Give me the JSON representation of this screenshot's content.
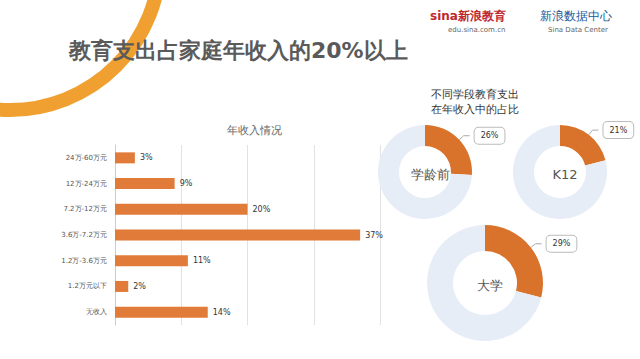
{
  "title": "教育支出占家庭年收入的20%以上",
  "logos": [
    {
      "name": "sina新浪教育",
      "sub": "edu.sina.com.cn"
    },
    {
      "name": "新浪数据中心",
      "sub": "Sina Data Center"
    }
  ],
  "chart_data": [
    {
      "type": "bar",
      "title": "年收入情况",
      "orientation": "horizontal",
      "categories": [
        "24万-60万元",
        "12万-24万元",
        "7.2万-12万元",
        "3.6万-7.2万元",
        "1.2万-3.6万元",
        "1.2万元以下",
        "无收入"
      ],
      "values": [
        3,
        9,
        20,
        37,
        11,
        2,
        14
      ],
      "value_labels": [
        "3%",
        "9%",
        "20%",
        "37%",
        "11%",
        "2%",
        "14%"
      ],
      "color": "#e07b39",
      "xlim": [
        0,
        40
      ],
      "xticks": [
        0,
        10,
        20,
        30,
        40
      ],
      "grid": true,
      "data_labels": true,
      "tick_labels": "y"
    },
    {
      "type": "pie",
      "title": "不同学段教育支出\n在年收入中的占比",
      "data_labels": true,
      "series": [
        {
          "name": "学龄前",
          "values": [
            26,
            74
          ],
          "value_labels": [
            "26%",
            null
          ],
          "colors": [
            "#d9732b",
            "#e6edf7"
          ]
        },
        {
          "name": "K12",
          "values": [
            21,
            79
          ],
          "value_labels": [
            "21%",
            null
          ],
          "colors": [
            "#d9732b",
            "#e6edf7"
          ]
        },
        {
          "name": "大学",
          "values": [
            29,
            71
          ],
          "value_labels": [
            "29%",
            null
          ],
          "colors": [
            "#d9732b",
            "#e6edf7"
          ]
        }
      ]
    }
  ]
}
